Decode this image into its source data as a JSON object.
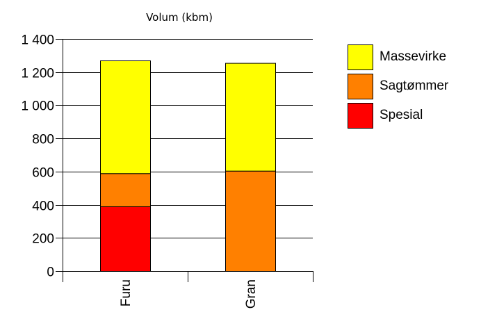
{
  "chart_data": {
    "type": "bar",
    "stacked": true,
    "title": "",
    "ylabel": "Volum (kbm)",
    "xlabel": "",
    "categories": [
      "Furu",
      "Gran"
    ],
    "series": [
      {
        "name": "Spesial",
        "color": "#ff0000",
        "values": [
          390,
          0
        ]
      },
      {
        "name": "Sagtømmer",
        "color": "#ff8000",
        "values": [
          200,
          605
        ]
      },
      {
        "name": "Massevirke",
        "color": "#ffff00",
        "values": [
          680,
          650
        ]
      }
    ],
    "ylim": [
      0,
      1400
    ],
    "yticks": [
      0,
      200,
      400,
      600,
      800,
      1000,
      1200,
      1400
    ],
    "ytick_labels": [
      "0",
      "200",
      "400",
      "600",
      "800",
      "1 000",
      "1 200",
      "1 400"
    ],
    "grid": true,
    "legend_position": "right",
    "legend_order": [
      "Massevirke",
      "Sagtømmer",
      "Spesial"
    ]
  }
}
